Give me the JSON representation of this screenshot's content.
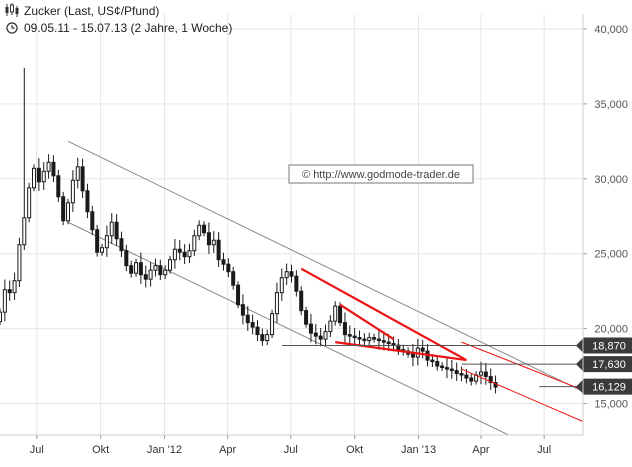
{
  "header": {
    "title": "Zucker (Last, US¢/Pfund)",
    "period": "09.05.11 - 15.07.13 (2 Jahre, 1 Woche)",
    "chart_icon": "candlestick-icon",
    "clock_icon": "clock-icon"
  },
  "watermark": "© http://www.godmode-trader.de",
  "colors": {
    "candle": "#1a1a1a",
    "channel": "#8a8a8a",
    "trendline": "#ee1111",
    "label_bg": "#3a3a3a",
    "grid": "#e6e6e6"
  },
  "chart_data": {
    "type": "candlestick",
    "title": "Zucker (Last, US¢/Pfund)",
    "subtitle": "09.05.11 - 15.07.13 (2 Jahre, 1 Woche)",
    "ylim": [
      12900,
      41000
    ],
    "xlim": [
      "2011-05-09",
      "2013-08-26"
    ],
    "y_ticks": [
      15000,
      20000,
      25000,
      30000,
      35000,
      40000
    ],
    "y_tick_labels": [
      "15,000",
      "20,000",
      "25,000",
      "30,000",
      "35,000",
      "40,000"
    ],
    "x_ticks": [
      "2011-07-01",
      "2011-10-01",
      "2012-01-01",
      "2012-04-01",
      "2012-07-01",
      "2012-10-01",
      "2013-01-01",
      "2013-04-01",
      "2013-07-01"
    ],
    "x_tick_labels": [
      "Jul",
      "Okt",
      "Jan '12",
      "Apr",
      "Jul",
      "Okt",
      "Jan '13",
      "Apr",
      "Jul"
    ],
    "grid": true,
    "level_labels": [
      {
        "value": 18870,
        "label": "18,870"
      },
      {
        "value": 17630,
        "label": "17,630"
      },
      {
        "value": 16129,
        "label": "16,129"
      }
    ],
    "closes": [
      21100,
      22600,
      22400,
      23200,
      25600,
      27400,
      29400,
      30700,
      29800,
      30500,
      31100,
      30200,
      28800,
      27200,
      28400,
      29900,
      30800,
      29200,
      27800,
      26600,
      25100,
      25400,
      26200,
      27100,
      26000,
      25200,
      24200,
      23700,
      24400,
      23600,
      23300,
      23900,
      24200,
      23600,
      23900,
      24600,
      25300,
      25100,
      24800,
      25200,
      26200,
      26900,
      26400,
      25600,
      25900,
      24600,
      24300,
      23800,
      22900,
      21600,
      20900,
      20400,
      20100,
      19600,
      19200,
      19600,
      21000,
      22400,
      23400,
      23800,
      23500,
      22500,
      21200,
      20300,
      19700,
      19500,
      19300,
      19800,
      20500,
      21500,
      20400,
      19600,
      19500,
      19400,
      19300,
      19200,
      19400,
      19300,
      19200,
      19100,
      19000,
      18900,
      18600,
      18500,
      18300,
      18100,
      18700,
      18500,
      17900,
      17800,
      17500,
      17400,
      17300,
      17200,
      17000,
      16900,
      16700,
      16500,
      16900,
      17100,
      16800,
      16400,
      16100
    ],
    "extremes": {
      "high": 37400,
      "high_date": "2011-06-13",
      "low": 16100,
      "low_date": "2013-07-15"
    },
    "annotations": [
      {
        "type": "channel_upper",
        "from": [
          "2011-08-15",
          32500
        ],
        "to": [
          "2013-08-26",
          15800
        ]
      },
      {
        "type": "channel_lower",
        "from": [
          "2011-08-15",
          27100
        ],
        "to": [
          "2013-08-26",
          10500
        ]
      },
      {
        "type": "trend_red",
        "from": [
          "2012-07-16",
          24000
        ],
        "to": [
          "2013-03-11",
          17900
        ]
      },
      {
        "type": "trend_red",
        "from": [
          "2012-09-03",
          19100
        ],
        "to": [
          "2013-03-11",
          17900
        ]
      },
      {
        "type": "trend_red",
        "from": [
          "2012-09-10",
          21600
        ],
        "to": [
          "2012-11-26",
          19300
        ]
      },
      {
        "type": "red_channel_upper",
        "from": [
          "2013-03-04",
          19100
        ],
        "to": [
          "2013-08-26",
          15900
        ]
      },
      {
        "type": "red_channel_lower",
        "from": [
          "2013-03-04",
          17300
        ],
        "to": [
          "2013-08-26",
          13800
        ]
      }
    ]
  }
}
